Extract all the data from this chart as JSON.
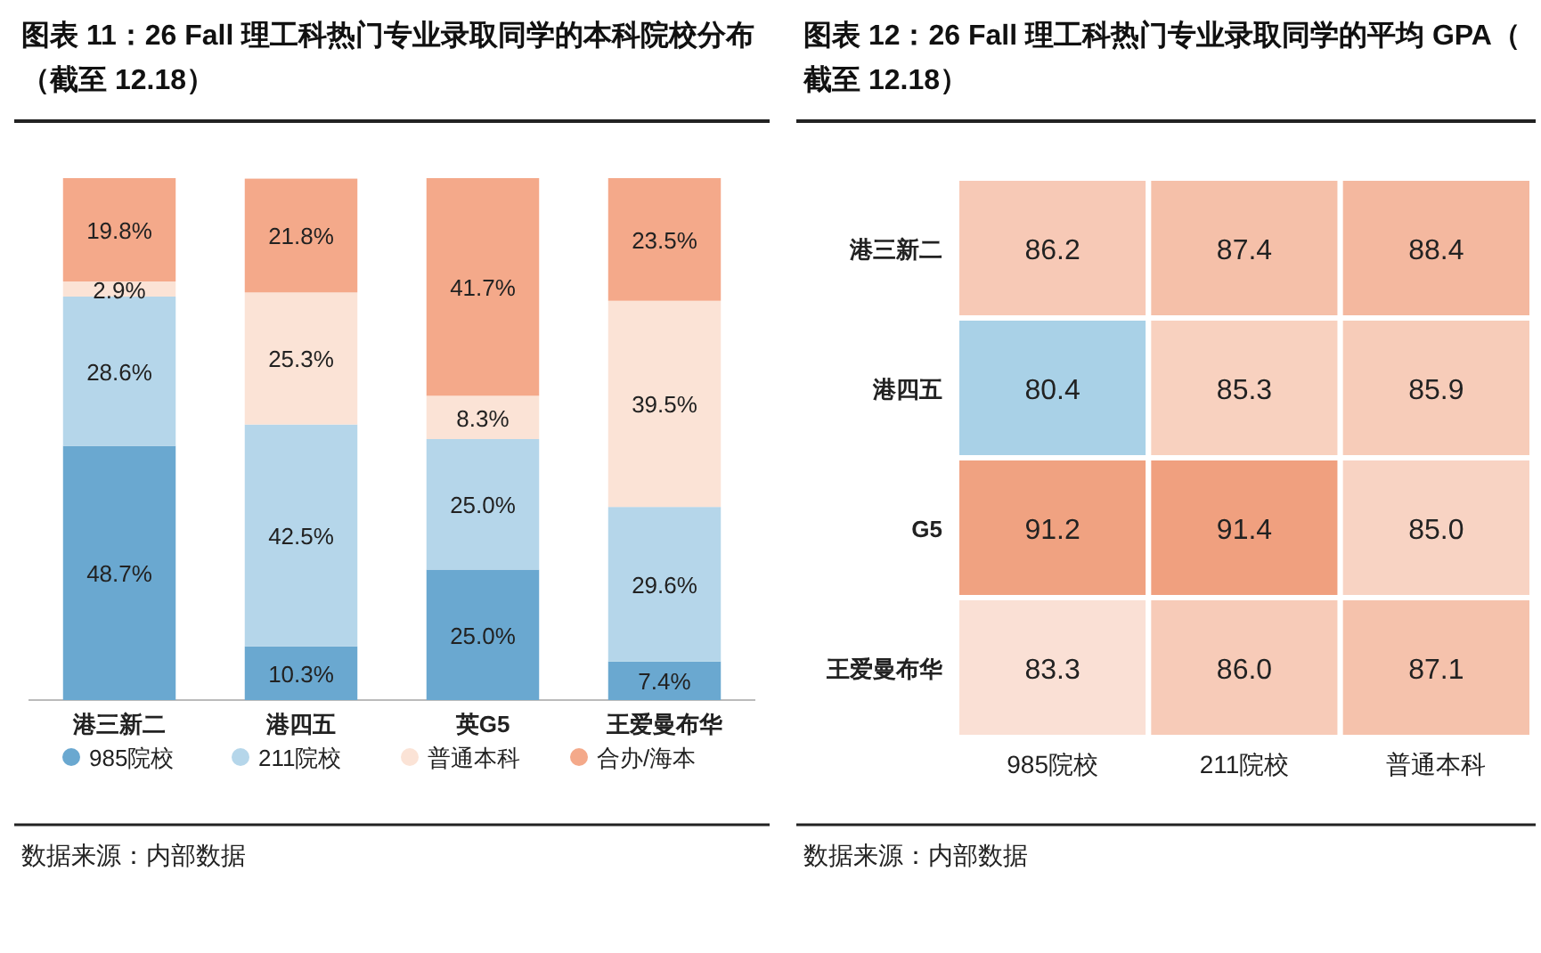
{
  "chart_data": [
    {
      "type": "bar",
      "stacked": true,
      "title": "图表 11：26 Fall 理工科热门专业录取同学的本科院校分布（截至 12.18）",
      "categories": [
        "港三新二",
        "港四五",
        "英G5",
        "王爱曼布华"
      ],
      "legend": "bottom",
      "series": [
        {
          "name": "985院校",
          "color": "#6aa8d0",
          "values": [
            48.7,
            10.3,
            25.0,
            7.4
          ],
          "value_labels": [
            "48.7%",
            "10.3%",
            "25.0%",
            "7.4%"
          ]
        },
        {
          "name": "211院校",
          "color": "#b5d6ea",
          "values": [
            28.6,
            42.5,
            25.0,
            29.6
          ],
          "value_labels": [
            "28.6%",
            "42.5%",
            "25.0%",
            "29.6%"
          ]
        },
        {
          "name": "普通本科",
          "color": "#fbe3d6",
          "values": [
            2.9,
            25.3,
            8.3,
            39.5
          ],
          "value_labels": [
            "2.9%",
            "25.3%",
            "8.3%",
            "39.5%"
          ]
        },
        {
          "name": "合办/海本",
          "color": "#f4a98a",
          "values": [
            19.8,
            21.8,
            41.7,
            23.5
          ],
          "value_labels": [
            "19.8%",
            "21.8%",
            "41.7%",
            "23.5%"
          ]
        }
      ],
      "annotations": [
        "数据来源：内部数据"
      ]
    },
    {
      "type": "heatmap",
      "title": "图表 12：26 Fall 理工科热门专业录取同学的平均 GPA（截至 12.18）",
      "categories": [
        "985院校",
        "211院校",
        "普通本科"
      ],
      "y_categories": [
        "港三新二",
        "港四五",
        "G5",
        "王爱曼布华"
      ],
      "cells": [
        [
          86.2,
          87.4,
          88.4
        ],
        [
          80.4,
          85.3,
          85.9
        ],
        [
          91.2,
          91.4,
          85.0
        ],
        [
          83.3,
          86.0,
          87.1
        ]
      ],
      "cell_labels": [
        [
          "86.2",
          "87.4",
          "88.4"
        ],
        [
          "80.4",
          "85.3",
          "85.9"
        ],
        [
          "91.2",
          "91.4",
          "85.0"
        ],
        [
          "83.3",
          "86.0",
          "87.1"
        ]
      ],
      "annotations": [
        "数据来源：内部数据"
      ]
    }
  ]
}
